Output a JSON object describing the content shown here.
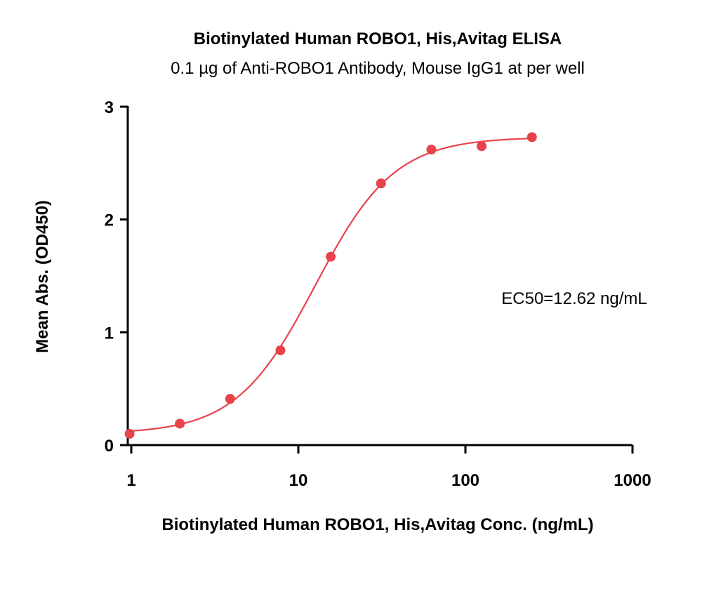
{
  "chart_data": {
    "type": "scatter",
    "title": "Biotinylated Human ROBO1, His,Avitag ELISA",
    "subtitle": "0.1 µg of Anti-ROBO1 Antibody, Mouse IgG1 at per well",
    "xlabel": "Biotinylated Human ROBO1, His,Avitag Conc. (ng/mL)",
    "ylabel": "Mean Abs. (OD450)",
    "x_scale": "log",
    "xlim": [
      1,
      1000
    ],
    "ylim": [
      0,
      3
    ],
    "x_ticks": [
      "1",
      "10",
      "100",
      "1000"
    ],
    "y_ticks": [
      "0",
      "1",
      "2",
      "3"
    ],
    "grid": false,
    "annotation": "EC50=12.62 ng/mL",
    "color": "#e8434b",
    "series": [
      {
        "x": [
          0.977,
          1.953,
          3.906,
          7.813,
          15.625,
          31.25,
          62.5,
          125,
          250
        ],
        "y": [
          0.1,
          0.19,
          0.41,
          0.84,
          1.67,
          2.32,
          2.62,
          2.65,
          2.73
        ]
      }
    ],
    "fit": {
      "model": "4PL",
      "bottom": 0.1,
      "top": 2.73,
      "ec50": 12.62,
      "hill": 1.83
    }
  }
}
